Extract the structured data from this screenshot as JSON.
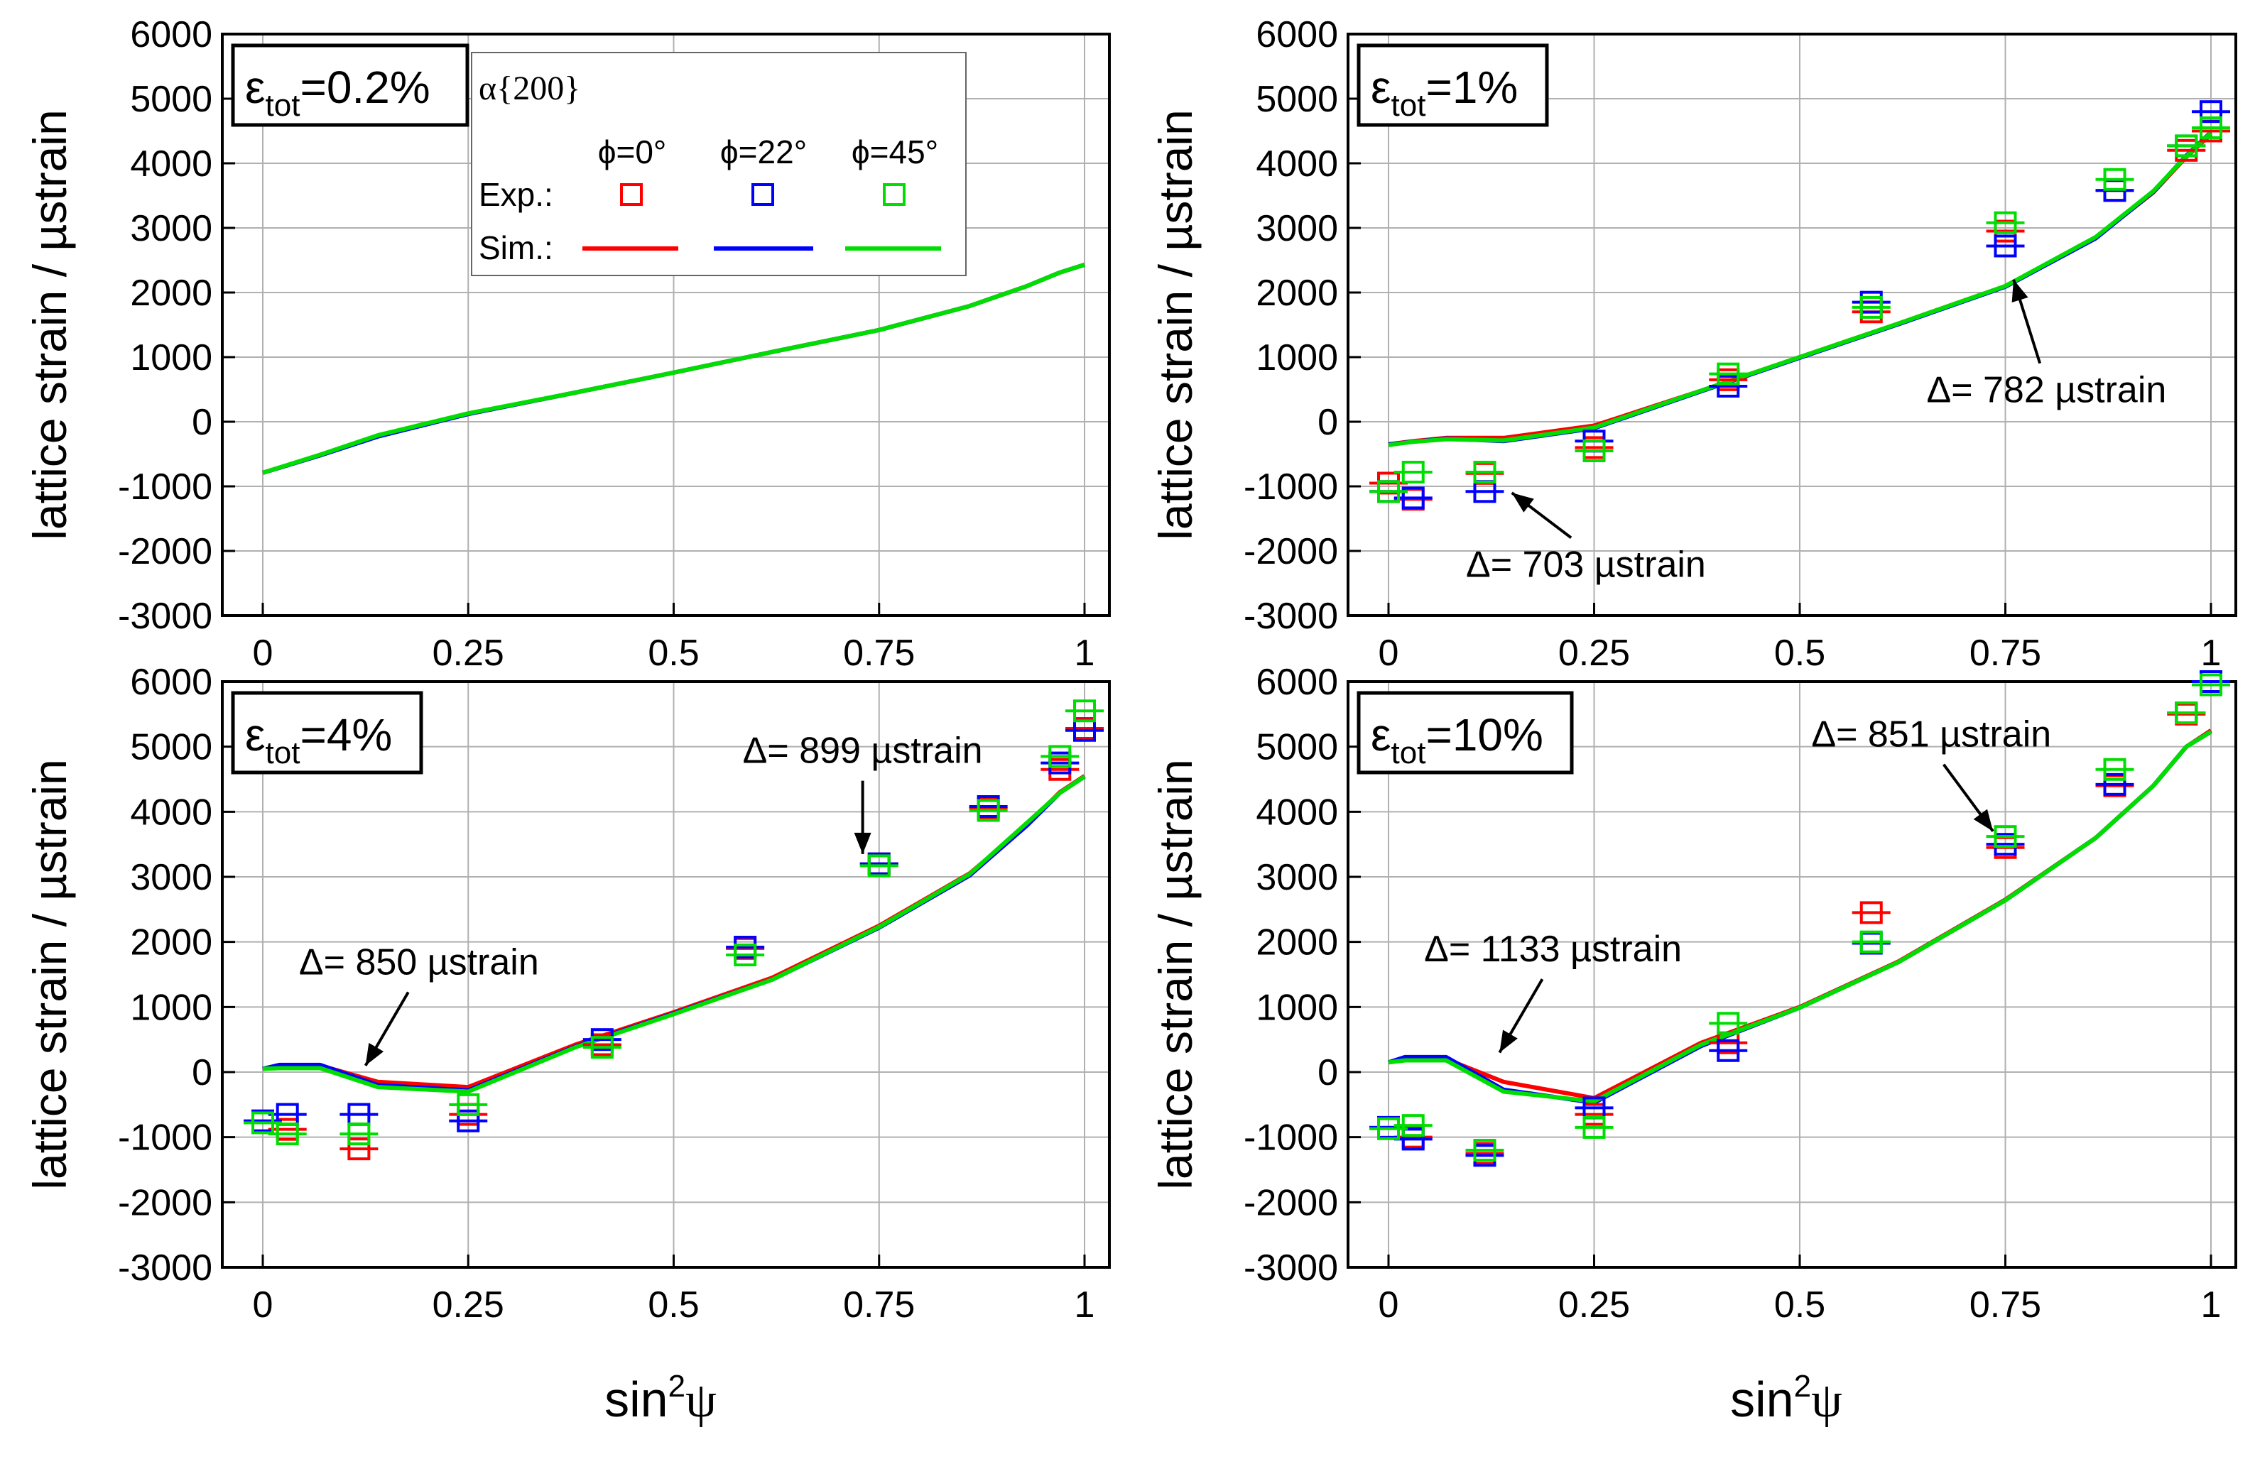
{
  "colors": {
    "phi0": "#ff0000",
    "phi22": "#0000ff",
    "phi45": "#00dd00",
    "grid": "#b0b0b0",
    "axis": "#000000"
  },
  "legend": {
    "reflection": "α{200}",
    "phi_labels": [
      "ϕ=0°",
      "ϕ=22°",
      "ϕ=45°"
    ],
    "exp_label": "Exp.:",
    "sim_label": "Sim.:"
  },
  "axis_common": {
    "ylabel": "lattice strain / µstrain",
    "xlabel_base": "sin",
    "xlabel_sup": "2",
    "xlabel_sym": "ψ",
    "x_ticks": [
      "0",
      "0.25",
      "0.5",
      "0.75",
      "1"
    ],
    "y_ticks": [
      "6000",
      "5000",
      "4000",
      "3000",
      "2000",
      "1000",
      "0",
      "-1000",
      "-2000",
      "-3000"
    ]
  },
  "chart_data": [
    {
      "type": "scatter",
      "panel": "top-left",
      "title_prefix": "ε",
      "title_sub": "tot",
      "title_value": "=0.2%",
      "xlabel": "sin2ψ",
      "ylabel": "lattice strain / µstrain",
      "xlim": [
        0,
        1
      ],
      "ylim": [
        -3000,
        6000
      ],
      "grid": true,
      "legend_position": "top-center",
      "exp_series": [],
      "sim_series": [
        {
          "name": "ϕ=0°",
          "x": [
            0,
            0.07,
            0.14,
            0.25,
            0.38,
            0.5,
            0.62,
            0.75,
            0.86,
            0.93,
            0.97,
            1.0
          ],
          "y": [
            -790,
            -520,
            -220,
            120,
            450,
            760,
            1080,
            1420,
            1790,
            2100,
            2310,
            2430
          ]
        },
        {
          "name": "ϕ=22°",
          "x": [
            0,
            0.07,
            0.14,
            0.25,
            0.38,
            0.5,
            0.62,
            0.75,
            0.86,
            0.93,
            0.97,
            1.0
          ],
          "y": [
            -790,
            -520,
            -230,
            120,
            450,
            760,
            1080,
            1420,
            1790,
            2100,
            2310,
            2430
          ]
        },
        {
          "name": "ϕ=45°",
          "x": [
            0,
            0.07,
            0.14,
            0.25,
            0.38,
            0.5,
            0.62,
            0.75,
            0.86,
            0.93,
            0.97,
            1.0
          ],
          "y": [
            -790,
            -510,
            -210,
            130,
            450,
            760,
            1080,
            1420,
            1790,
            2100,
            2310,
            2430
          ]
        }
      ],
      "annotations": []
    },
    {
      "type": "scatter",
      "panel": "top-right",
      "title_prefix": "ε",
      "title_sub": "tot",
      "title_value": "=1%",
      "xlabel": "sin2ψ",
      "ylabel": "lattice strain / µstrain",
      "xlim": [
        0,
        1
      ],
      "ylim": [
        -3000,
        6000
      ],
      "grid": true,
      "exp_series": [
        {
          "name": "ϕ=0°",
          "x": [
            0,
            0.03,
            0.117,
            0.25,
            0.413,
            0.587,
            0.75,
            0.883,
            0.97,
            1.0
          ],
          "y": [
            -950,
            -1200,
            -800,
            -400,
            650,
            1700,
            2950,
            3580,
            4200,
            4500
          ]
        },
        {
          "name": "ϕ=22°",
          "x": [
            0,
            0.03,
            0.117,
            0.25,
            0.413,
            0.587,
            0.75,
            0.883,
            0.97,
            1.0
          ],
          "y": [
            -1080,
            -1180,
            -1080,
            -300,
            550,
            1850,
            2720,
            3580,
            4270,
            4800
          ]
        },
        {
          "name": "ϕ=45°",
          "x": [
            0,
            0.03,
            0.117,
            0.25,
            0.413,
            0.587,
            0.75,
            0.883,
            0.97,
            1.0
          ],
          "y": [
            -1080,
            -780,
            -780,
            -450,
            740,
            1770,
            3080,
            3750,
            4270,
            4550
          ]
        }
      ],
      "sim_series": [
        {
          "name": "ϕ=0°",
          "x": [
            0,
            0.03,
            0.07,
            0.14,
            0.25,
            0.38,
            0.5,
            0.62,
            0.75,
            0.86,
            0.93,
            0.97,
            1.0
          ],
          "y": [
            -350,
            -300,
            -250,
            -250,
            -60,
            480,
            1000,
            1520,
            2100,
            2850,
            3550,
            4100,
            4450
          ]
        },
        {
          "name": "ϕ=22°",
          "x": [
            0,
            0.03,
            0.07,
            0.14,
            0.25,
            0.38,
            0.5,
            0.62,
            0.75,
            0.86,
            0.93,
            0.97,
            1.0
          ],
          "y": [
            -350,
            -310,
            -260,
            -300,
            -100,
            470,
            990,
            1510,
            2090,
            2840,
            3560,
            4120,
            4480
          ]
        },
        {
          "name": "ϕ=45°",
          "x": [
            0,
            0.03,
            0.07,
            0.14,
            0.25,
            0.38,
            0.5,
            0.62,
            0.75,
            0.86,
            0.93,
            0.97,
            1.0
          ],
          "y": [
            -360,
            -310,
            -270,
            -290,
            -90,
            480,
            1000,
            1520,
            2100,
            2860,
            3570,
            4110,
            4470
          ]
        }
      ],
      "annotations": [
        {
          "text": "Δ= 782 µstrain",
          "anchor_x": 0.76,
          "anchor_y": 2200,
          "label_x": 0.8,
          "label_y": 300
        },
        {
          "text": "Δ= 703 µstrain",
          "anchor_x": 0.15,
          "anchor_y": -1100,
          "label_x": 0.24,
          "label_y": -2400
        }
      ]
    },
    {
      "type": "scatter",
      "panel": "bottom-left",
      "title_prefix": "ε",
      "title_sub": "tot",
      "title_value": "=4%",
      "xlabel": "sin2ψ",
      "ylabel": "lattice strain / µstrain",
      "xlim": [
        0,
        1
      ],
      "ylim": [
        -3000,
        6000
      ],
      "grid": true,
      "exp_series": [
        {
          "name": "ϕ=0°",
          "x": [
            0,
            0.03,
            0.117,
            0.25,
            0.413,
            0.587,
            0.75,
            0.883,
            0.97,
            1.0
          ],
          "y": [
            -750,
            -880,
            -1180,
            -650,
            420,
            1900,
            3200,
            4050,
            4650,
            5280
          ]
        },
        {
          "name": "ϕ=22°",
          "x": [
            0,
            0.03,
            0.117,
            0.25,
            0.413,
            0.587,
            0.75,
            0.883,
            0.97,
            1.0
          ],
          "y": [
            -750,
            -650,
            -650,
            -750,
            500,
            1920,
            3200,
            4080,
            4750,
            5250
          ]
        },
        {
          "name": "ϕ=45°",
          "x": [
            0,
            0.03,
            0.117,
            0.25,
            0.413,
            0.587,
            0.75,
            0.883,
            0.97,
            1.0
          ],
          "y": [
            -780,
            -950,
            -950,
            -500,
            380,
            1800,
            3170,
            4020,
            4850,
            5550
          ]
        }
      ],
      "sim_series": [
        {
          "name": "ϕ=0°",
          "x": [
            0,
            0.02,
            0.07,
            0.14,
            0.25,
            0.38,
            0.5,
            0.62,
            0.75,
            0.86,
            0.93,
            0.97,
            1.0
          ],
          "y": [
            50,
            100,
            100,
            -150,
            -230,
            420,
            920,
            1450,
            2250,
            3050,
            3800,
            4300,
            4550
          ]
        },
        {
          "name": "ϕ=22°",
          "x": [
            0,
            0.02,
            0.07,
            0.14,
            0.25,
            0.38,
            0.5,
            0.62,
            0.75,
            0.86,
            0.93,
            0.97,
            1.0
          ],
          "y": [
            50,
            110,
            110,
            -200,
            -280,
            390,
            900,
            1420,
            2220,
            3020,
            3790,
            4290,
            4540
          ]
        },
        {
          "name": "ϕ=45°",
          "x": [
            0,
            0.02,
            0.07,
            0.14,
            0.25,
            0.38,
            0.5,
            0.62,
            0.75,
            0.86,
            0.93,
            0.97,
            1.0
          ],
          "y": [
            50,
            60,
            60,
            -230,
            -300,
            380,
            890,
            1420,
            2230,
            3040,
            3830,
            4290,
            4540
          ]
        }
      ],
      "annotations": [
        {
          "text": "Δ= 899 µstrain",
          "anchor_x": 0.73,
          "anchor_y": 3350,
          "label_x": 0.73,
          "label_y": 4750
        },
        {
          "text": "Δ= 850 µstrain",
          "anchor_x": 0.125,
          "anchor_y": 100,
          "label_x": 0.19,
          "label_y": 1500
        }
      ]
    },
    {
      "type": "scatter",
      "panel": "bottom-right",
      "title_prefix": "ε",
      "title_sub": "tot",
      "title_value": "=10%",
      "xlabel": "sin2ψ",
      "ylabel": "lattice strain / µstrain",
      "xlim": [
        0,
        1
      ],
      "ylim": [
        -3000,
        6000
      ],
      "grid": true,
      "exp_series": [
        {
          "name": "ϕ=0°",
          "x": [
            0,
            0.03,
            0.117,
            0.25,
            0.413,
            0.587,
            0.75,
            0.883,
            0.97,
            1.0
          ],
          "y": [
            -850,
            -1000,
            -1250,
            -650,
            450,
            2450,
            3450,
            4400,
            5500,
            6000
          ]
        },
        {
          "name": "ϕ=22°",
          "x": [
            0,
            0.03,
            0.117,
            0.25,
            0.413,
            0.587,
            0.75,
            0.883,
            0.97,
            1.0
          ],
          "y": [
            -850,
            -1030,
            -1280,
            -550,
            330,
            1980,
            3500,
            4420,
            5520,
            6000
          ]
        },
        {
          "name": "ϕ=45°",
          "x": [
            0,
            0.03,
            0.117,
            0.25,
            0.413,
            0.587,
            0.75,
            0.883,
            0.97,
            1.0
          ],
          "y": [
            -870,
            -820,
            -1200,
            -850,
            750,
            2000,
            3620,
            4650,
            5520,
            5950
          ]
        }
      ],
      "sim_series": [
        {
          "name": "ϕ=0°",
          "x": [
            0,
            0.02,
            0.07,
            0.14,
            0.25,
            0.38,
            0.5,
            0.62,
            0.75,
            0.86,
            0.93,
            0.97,
            1.0
          ],
          "y": [
            150,
            200,
            200,
            -150,
            -400,
            450,
            1000,
            1700,
            2650,
            3600,
            4400,
            5000,
            5250
          ]
        },
        {
          "name": "ϕ=22°",
          "x": [
            0,
            0.02,
            0.07,
            0.14,
            0.25,
            0.38,
            0.5,
            0.62,
            0.75,
            0.86,
            0.93,
            0.97,
            1.0
          ],
          "y": [
            150,
            230,
            230,
            -270,
            -470,
            400,
            990,
            1690,
            2640,
            3600,
            4400,
            5000,
            5230
          ]
        },
        {
          "name": "ϕ=45°",
          "x": [
            0,
            0.02,
            0.07,
            0.14,
            0.25,
            0.38,
            0.5,
            0.62,
            0.75,
            0.86,
            0.93,
            0.97,
            1.0
          ],
          "y": [
            150,
            180,
            180,
            -300,
            -450,
            420,
            990,
            1690,
            2640,
            3600,
            4400,
            5000,
            5230
          ]
        }
      ],
      "annotations": [
        {
          "text": "Δ= 851 µstrain",
          "anchor_x": 0.735,
          "anchor_y": 3700,
          "label_x": 0.66,
          "label_y": 5000
        },
        {
          "text": "Δ= 1133 µstrain",
          "anchor_x": 0.135,
          "anchor_y": 300,
          "label_x": 0.2,
          "label_y": 1700
        }
      ]
    }
  ]
}
